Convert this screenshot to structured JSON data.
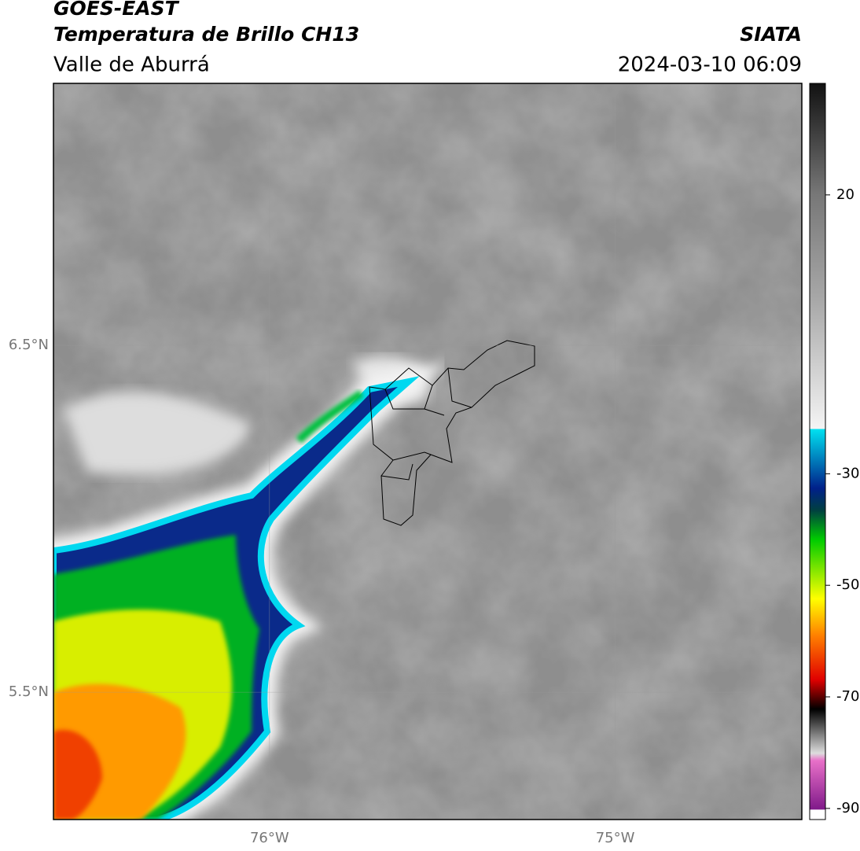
{
  "header": {
    "title": "GOES-EAST",
    "subtitle": "Temperatura de Brillo CH13",
    "region": "Valle de Aburrá",
    "source": "SIATA",
    "datetime": "2024-03-10 06:09"
  },
  "map": {
    "xlim": [
      -76.625,
      -74.46
    ],
    "ylim": [
      5.133,
      7.255
    ],
    "xticks": [
      {
        "value": -76,
        "label": "76°W"
      },
      {
        "value": -75,
        "label": "75°W"
      }
    ],
    "yticks": [
      {
        "value": 6.5,
        "label": "6.5°N"
      },
      {
        "value": 5.5,
        "label": "5.5°N"
      }
    ]
  },
  "colorbar": {
    "lim": [
      -92,
      40
    ],
    "ticks": [
      20,
      -30,
      -50,
      -70,
      -90
    ]
  }
}
